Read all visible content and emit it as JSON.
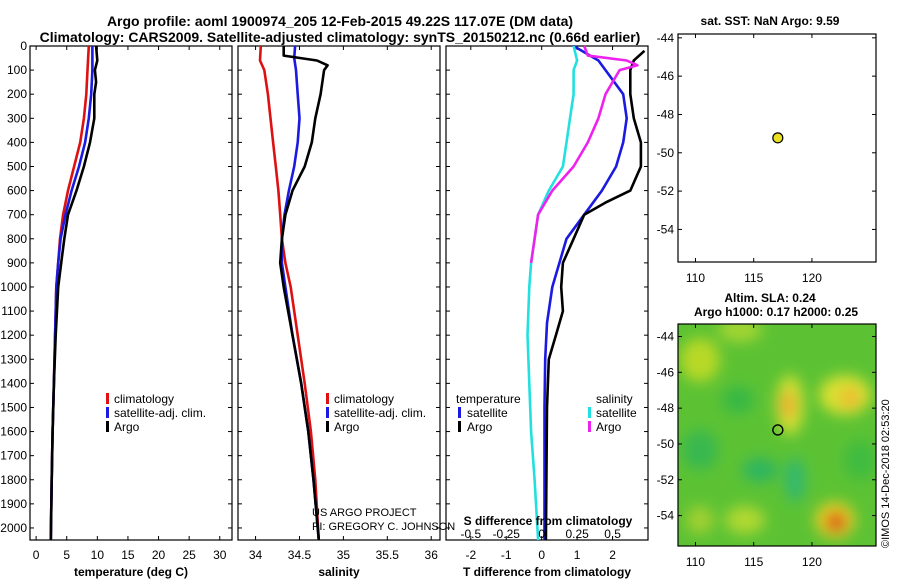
{
  "title": {
    "line1": "Argo profile: aoml 1900974_205 12-Feb-2015 49.22S 117.07E (DM data)",
    "line2": "Climatology: CARS2009. Satellite-adjusted climatology: synTS_20150212.nc (0.66d earlier)"
  },
  "colors": {
    "climatology": "#dd1111",
    "satellite": "#1a1ae0",
    "argo": "#000000",
    "sat_salinity": "#22e0e0",
    "argo_salinity": "#ee22ee",
    "marker": "#e8e020"
  },
  "chart_data": [
    {
      "id": "temperature",
      "type": "line",
      "xlabel": "temperature (deg C)",
      "xlim": [
        -1,
        32
      ],
      "ylim": [
        0,
        2050
      ],
      "y_reversed": true,
      "xticks": [
        0,
        5,
        10,
        15,
        20,
        25,
        30
      ],
      "yticks": [
        0,
        100,
        200,
        300,
        400,
        500,
        600,
        700,
        800,
        900,
        1000,
        1100,
        1200,
        1300,
        1400,
        1500,
        1600,
        1700,
        1800,
        1900,
        2000
      ],
      "legend": [
        "climatology",
        "satellite-adj. clim.",
        "Argo"
      ],
      "series": [
        {
          "name": "climatology",
          "color": "#dd1111",
          "points": [
            [
              8.6,
              0
            ],
            [
              8.4,
              100
            ],
            [
              8.2,
              200
            ],
            [
              7.8,
              300
            ],
            [
              7.2,
              400
            ],
            [
              6.2,
              500
            ],
            [
              5.2,
              600
            ],
            [
              4.4,
              700
            ],
            [
              3.9,
              800
            ],
            [
              3.6,
              900
            ],
            [
              3.3,
              1000
            ],
            [
              3.1,
              1200
            ],
            [
              2.9,
              1400
            ],
            [
              2.7,
              1600
            ],
            [
              2.55,
              1800
            ],
            [
              2.4,
              2050
            ]
          ]
        },
        {
          "name": "satellite-adj. clim.",
          "color": "#1a1ae0",
          "points": [
            [
              9.2,
              0
            ],
            [
              9.2,
              100
            ],
            [
              9.0,
              200
            ],
            [
              8.6,
              300
            ],
            [
              8.0,
              400
            ],
            [
              7.0,
              500
            ],
            [
              5.8,
              600
            ],
            [
              4.8,
              700
            ],
            [
              4.0,
              800
            ],
            [
              3.6,
              900
            ],
            [
              3.3,
              1000
            ],
            [
              3.1,
              1200
            ],
            [
              2.9,
              1400
            ],
            [
              2.7,
              1600
            ],
            [
              2.55,
              1800
            ],
            [
              2.4,
              2050
            ]
          ]
        },
        {
          "name": "Argo",
          "color": "#000000",
          "points": [
            [
              9.8,
              0
            ],
            [
              10.0,
              60
            ],
            [
              9.6,
              100
            ],
            [
              9.8,
              150
            ],
            [
              9.5,
              200
            ],
            [
              9.5,
              300
            ],
            [
              8.8,
              400
            ],
            [
              7.8,
              500
            ],
            [
              6.6,
              600
            ],
            [
              5.2,
              700
            ],
            [
              4.6,
              800
            ],
            [
              4.1,
              900
            ],
            [
              3.6,
              1000
            ],
            [
              3.2,
              1200
            ],
            [
              2.9,
              1400
            ],
            [
              2.7,
              1600
            ],
            [
              2.55,
              1800
            ],
            [
              2.4,
              2050
            ]
          ]
        }
      ]
    },
    {
      "id": "salinity",
      "type": "line",
      "xlabel": "salinity",
      "xlim": [
        33.8,
        36.1
      ],
      "ylim": [
        0,
        2050
      ],
      "y_reversed": true,
      "xticks": [
        34,
        34.5,
        35,
        35.5,
        36
      ],
      "legend": [
        "climatology",
        "satellite-adj. clim.",
        "Argo"
      ],
      "series": [
        {
          "name": "climatology",
          "color": "#dd1111",
          "points": [
            [
              34.06,
              0
            ],
            [
              34.05,
              60
            ],
            [
              34.1,
              100
            ],
            [
              34.14,
              200
            ],
            [
              34.17,
              300
            ],
            [
              34.2,
              400
            ],
            [
              34.23,
              500
            ],
            [
              34.26,
              600
            ],
            [
              34.28,
              700
            ],
            [
              34.3,
              800
            ],
            [
              34.34,
              900
            ],
            [
              34.4,
              1000
            ],
            [
              34.48,
              1200
            ],
            [
              34.56,
              1400
            ],
            [
              34.63,
              1600
            ],
            [
              34.68,
              1800
            ],
            [
              34.72,
              2050
            ]
          ]
        },
        {
          "name": "satellite-adj. clim.",
          "color": "#1a1ae0",
          "points": [
            [
              34.45,
              0
            ],
            [
              34.44,
              50
            ],
            [
              34.46,
              100
            ],
            [
              34.48,
              200
            ],
            [
              34.5,
              300
            ],
            [
              34.48,
              400
            ],
            [
              34.44,
              500
            ],
            [
              34.38,
              600
            ],
            [
              34.33,
              700
            ],
            [
              34.3,
              800
            ],
            [
              34.3,
              900
            ],
            [
              34.34,
              1000
            ],
            [
              34.42,
              1200
            ],
            [
              34.52,
              1400
            ],
            [
              34.6,
              1600
            ],
            [
              34.66,
              1800
            ],
            [
              34.72,
              2050
            ]
          ]
        },
        {
          "name": "Argo",
          "color": "#000000",
          "points": [
            [
              34.32,
              0
            ],
            [
              34.32,
              40
            ],
            [
              34.7,
              60
            ],
            [
              34.82,
              80
            ],
            [
              34.78,
              100
            ],
            [
              34.74,
              200
            ],
            [
              34.68,
              300
            ],
            [
              34.64,
              400
            ],
            [
              34.56,
              500
            ],
            [
              34.42,
              600
            ],
            [
              34.34,
              700
            ],
            [
              34.3,
              800
            ],
            [
              34.28,
              900
            ],
            [
              34.32,
              1000
            ],
            [
              34.42,
              1200
            ],
            [
              34.52,
              1400
            ],
            [
              34.6,
              1600
            ],
            [
              34.66,
              1800
            ],
            [
              34.72,
              2050
            ]
          ]
        }
      ]
    },
    {
      "id": "difference",
      "type": "line",
      "xlabel": "T difference from climatology",
      "top_label": "S difference from climatology",
      "xlim": [
        -2.7,
        3.0
      ],
      "top_xlim": [
        -0.675,
        0.75
      ],
      "ylim": [
        0,
        2050
      ],
      "y_reversed": true,
      "xticks": [
        -2,
        -1,
        0,
        1,
        2
      ],
      "top_xticks": [
        "-0.5",
        "-0.25",
        "0",
        "0.25",
        "0.5"
      ],
      "legend_left": {
        "heading": "temperature",
        "items": [
          "satellite",
          "Argo"
        ]
      },
      "legend_right": {
        "heading": "salinity",
        "items": [
          "satellite",
          "Argo"
        ]
      },
      "series": [
        {
          "name": "temperature satellite",
          "color": "#1a1ae0",
          "points": [
            [
              0.9,
              0
            ],
            [
              1.6,
              60
            ],
            [
              1.8,
              100
            ],
            [
              2.3,
              200
            ],
            [
              2.4,
              300
            ],
            [
              2.3,
              400
            ],
            [
              2.1,
              500
            ],
            [
              1.7,
              600
            ],
            [
              1.2,
              700
            ],
            [
              0.7,
              800
            ],
            [
              0.5,
              900
            ],
            [
              0.3,
              1000
            ],
            [
              0.15,
              1150
            ],
            [
              0.1,
              1300
            ],
            [
              0.08,
              1500
            ],
            [
              0.08,
              2050
            ]
          ]
        },
        {
          "name": "temperature Argo",
          "color": "#000000",
          "points": [
            [
              2.9,
              20
            ],
            [
              2.6,
              60
            ],
            [
              2.5,
              100
            ],
            [
              2.5,
              200
            ],
            [
              2.6,
              300
            ],
            [
              2.8,
              400
            ],
            [
              2.8,
              500
            ],
            [
              2.5,
              600
            ],
            [
              1.8,
              650
            ],
            [
              1.2,
              700
            ],
            [
              0.9,
              800
            ],
            [
              0.6,
              900
            ],
            [
              0.55,
              1000
            ],
            [
              0.6,
              1100
            ],
            [
              0.4,
              1200
            ],
            [
              0.2,
              1300
            ],
            [
              0.15,
              1500
            ],
            [
              0.12,
              2050
            ]
          ]
        },
        {
          "name": "salinity satellite",
          "color": "#22e0e0",
          "points": [
            [
              0.9,
              0
            ],
            [
              1.0,
              60
            ],
            [
              0.9,
              100
            ],
            [
              0.9,
              200
            ],
            [
              0.8,
              300
            ],
            [
              0.7,
              400
            ],
            [
              0.6,
              500
            ],
            [
              0.2,
              600
            ],
            [
              -0.1,
              700
            ],
            [
              -0.2,
              800
            ],
            [
              -0.3,
              900
            ],
            [
              -0.35,
              1000
            ],
            [
              -0.4,
              1200
            ],
            [
              -0.35,
              1400
            ],
            [
              -0.3,
              1600
            ],
            [
              -0.2,
              1800
            ],
            [
              -0.1,
              2050
            ]
          ]
        },
        {
          "name": "salinity Argo",
          "color": "#ee22ee",
          "points": [
            [
              1.2,
              0
            ],
            [
              1.3,
              40
            ],
            [
              2.4,
              60
            ],
            [
              2.7,
              80
            ],
            [
              2.2,
              100
            ],
            [
              1.8,
              200
            ],
            [
              1.6,
              300
            ],
            [
              1.3,
              400
            ],
            [
              0.9,
              500
            ],
            [
              0.3,
              600
            ],
            [
              -0.1,
              700
            ],
            [
              -0.2,
              800
            ],
            [
              -0.3,
              900
            ]
          ]
        }
      ]
    },
    {
      "id": "sst-map",
      "type": "scatter",
      "title": "sat. SST: NaN Argo: 9.59",
      "xlim": [
        108.5,
        125.5
      ],
      "ylim": [
        -55.7,
        -43.8
      ],
      "xticks": [
        110,
        115,
        120
      ],
      "yticks": [
        -44,
        -46,
        -48,
        -50,
        -52,
        -54
      ],
      "point": [
        117.07,
        -49.22
      ]
    },
    {
      "id": "sla-map",
      "type": "heatmap",
      "title1": "Altim. SLA: 0.24",
      "title2": "Argo h1000: 0.17 h2000: 0.25",
      "xlim": [
        108.5,
        125.5
      ],
      "ylim": [
        -55.7,
        -43.3
      ],
      "xticks": [
        110,
        115,
        120
      ],
      "yticks": [
        -44,
        -46,
        -48,
        -50,
        -52,
        -54
      ],
      "point": [
        117.07,
        -49.22
      ]
    }
  ],
  "credits": {
    "project": "US ARGO PROJECT",
    "pi": "PI: GREGORY C. JOHNSON",
    "imos": "©IMOS 14-Dec-2018 02:53:20"
  }
}
